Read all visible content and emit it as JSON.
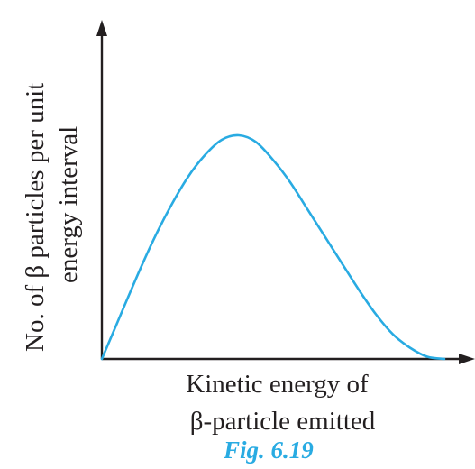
{
  "chart_data": {
    "type": "line",
    "title": "",
    "ylabel_lines": [
      "No. of β particles per unit",
      "energy interval"
    ],
    "xlabel_lines": [
      "Kinetic energy of",
      "β-particle emitted"
    ],
    "caption": "Fig. 6.19",
    "xlim": [
      0,
      1
    ],
    "ylim": [
      0,
      1
    ],
    "grid": false,
    "curve_color": "#29abe2",
    "axis_color": "#231f20",
    "series": [
      {
        "x": [
          0,
          0.05,
          0.1,
          0.15,
          0.2,
          0.25,
          0.3,
          0.35,
          0.4,
          0.45,
          0.5,
          0.55,
          0.6,
          0.65,
          0.7,
          0.75,
          0.8,
          0.85,
          0.9,
          0.95,
          1.0
        ],
        "values": [
          0,
          0.18,
          0.36,
          0.53,
          0.68,
          0.81,
          0.91,
          0.98,
          1.0,
          0.97,
          0.89,
          0.79,
          0.67,
          0.55,
          0.43,
          0.31,
          0.2,
          0.11,
          0.05,
          0.01,
          0
        ]
      }
    ]
  }
}
